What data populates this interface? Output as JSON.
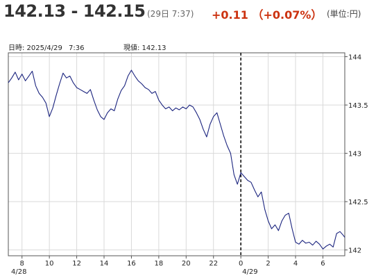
{
  "header": {
    "price_range": "142.13 - 142.15",
    "time": "(29日 7:37)",
    "change": "+0.11 （+0.07%）",
    "unit": "(単位:円)"
  },
  "info": {
    "datetime_label": "日時: 2025/4/29",
    "datetime_time": "7:36",
    "current_label": "現値: 142.13"
  },
  "chart_data": {
    "type": "line",
    "title": "",
    "xlabel": "",
    "ylabel": "",
    "y_ticks": [
      "144",
      "143.5",
      "143",
      "142.5",
      "142"
    ],
    "ylim": [
      141.94,
      144.04
    ],
    "x_ticks": [
      "8",
      "10",
      "12",
      "14",
      "16",
      "18",
      "20",
      "22",
      "0",
      "2",
      "4",
      "6"
    ],
    "x_sublabels": [
      "4/28",
      "4/29"
    ],
    "xlim": [
      "2025-04-28 07:00",
      "2025-04-29 07:36"
    ],
    "day_separator": "2025-04-29 00:00",
    "grid": true,
    "series": [
      {
        "color": "#1a237e",
        "points": [
          [
            "2025-04-28 07:00",
            143.73
          ],
          [
            "2025-04-28 07:15",
            143.78
          ],
          [
            "2025-04-28 07:30",
            143.84
          ],
          [
            "2025-04-28 07:45",
            143.76
          ],
          [
            "2025-04-28 08:00",
            143.82
          ],
          [
            "2025-04-28 08:15",
            143.75
          ],
          [
            "2025-04-28 08:30",
            143.8
          ],
          [
            "2025-04-28 08:45",
            143.85
          ],
          [
            "2025-04-28 09:00",
            143.7
          ],
          [
            "2025-04-28 09:15",
            143.62
          ],
          [
            "2025-04-28 09:30",
            143.58
          ],
          [
            "2025-04-28 09:45",
            143.52
          ],
          [
            "2025-04-28 10:00",
            143.38
          ],
          [
            "2025-04-28 10:15",
            143.47
          ],
          [
            "2025-04-28 10:30",
            143.6
          ],
          [
            "2025-04-28 10:45",
            143.72
          ],
          [
            "2025-04-28 11:00",
            143.83
          ],
          [
            "2025-04-28 11:15",
            143.78
          ],
          [
            "2025-04-28 11:30",
            143.8
          ],
          [
            "2025-04-28 11:45",
            143.73
          ],
          [
            "2025-04-28 12:00",
            143.68
          ],
          [
            "2025-04-28 12:15",
            143.66
          ],
          [
            "2025-04-28 12:30",
            143.64
          ],
          [
            "2025-04-28 12:45",
            143.62
          ],
          [
            "2025-04-28 13:00",
            143.66
          ],
          [
            "2025-04-28 13:15",
            143.55
          ],
          [
            "2025-04-28 13:30",
            143.45
          ],
          [
            "2025-04-28 13:45",
            143.38
          ],
          [
            "2025-04-28 14:00",
            143.35
          ],
          [
            "2025-04-28 14:15",
            143.42
          ],
          [
            "2025-04-28 14:30",
            143.46
          ],
          [
            "2025-04-28 14:45",
            143.44
          ],
          [
            "2025-04-28 15:00",
            143.56
          ],
          [
            "2025-04-28 15:15",
            143.65
          ],
          [
            "2025-04-28 15:30",
            143.7
          ],
          [
            "2025-04-28 15:45",
            143.8
          ],
          [
            "2025-04-28 16:00",
            143.86
          ],
          [
            "2025-04-28 16:15",
            143.8
          ],
          [
            "2025-04-28 16:30",
            143.75
          ],
          [
            "2025-04-28 16:45",
            143.72
          ],
          [
            "2025-04-28 17:00",
            143.68
          ],
          [
            "2025-04-28 17:15",
            143.66
          ],
          [
            "2025-04-28 17:30",
            143.62
          ],
          [
            "2025-04-28 17:45",
            143.64
          ],
          [
            "2025-04-28 18:00",
            143.55
          ],
          [
            "2025-04-28 18:15",
            143.5
          ],
          [
            "2025-04-28 18:30",
            143.46
          ],
          [
            "2025-04-28 18:45",
            143.48
          ],
          [
            "2025-04-28 19:00",
            143.44
          ],
          [
            "2025-04-28 19:15",
            143.47
          ],
          [
            "2025-04-28 19:30",
            143.45
          ],
          [
            "2025-04-28 19:45",
            143.48
          ],
          [
            "2025-04-28 20:00",
            143.46
          ],
          [
            "2025-04-28 20:15",
            143.5
          ],
          [
            "2025-04-28 20:30",
            143.48
          ],
          [
            "2025-04-28 20:45",
            143.42
          ],
          [
            "2025-04-28 21:00",
            143.35
          ],
          [
            "2025-04-28 21:15",
            143.25
          ],
          [
            "2025-04-28 21:30",
            143.17
          ],
          [
            "2025-04-28 21:45",
            143.3
          ],
          [
            "2025-04-28 22:00",
            143.38
          ],
          [
            "2025-04-28 22:15",
            143.42
          ],
          [
            "2025-04-28 22:30",
            143.3
          ],
          [
            "2025-04-28 22:45",
            143.18
          ],
          [
            "2025-04-28 23:00",
            143.08
          ],
          [
            "2025-04-28 23:15",
            143.0
          ],
          [
            "2025-04-28 23:30",
            142.78
          ],
          [
            "2025-04-28 23:45",
            142.68
          ],
          [
            "2025-04-29 00:00",
            142.8
          ],
          [
            "2025-04-29 00:15",
            142.76
          ],
          [
            "2025-04-29 00:30",
            142.72
          ],
          [
            "2025-04-29 00:45",
            142.7
          ],
          [
            "2025-04-29 01:00",
            142.62
          ],
          [
            "2025-04-29 01:15",
            142.55
          ],
          [
            "2025-04-29 01:30",
            142.6
          ],
          [
            "2025-04-29 01:45",
            142.42
          ],
          [
            "2025-04-29 02:00",
            142.3
          ],
          [
            "2025-04-29 02:15",
            142.22
          ],
          [
            "2025-04-29 02:30",
            142.26
          ],
          [
            "2025-04-29 02:45",
            142.2
          ],
          [
            "2025-04-29 03:00",
            142.3
          ],
          [
            "2025-04-29 03:15",
            142.36
          ],
          [
            "2025-04-29 03:30",
            142.38
          ],
          [
            "2025-04-29 03:45",
            142.22
          ],
          [
            "2025-04-29 04:00",
            142.08
          ],
          [
            "2025-04-29 04:15",
            142.06
          ],
          [
            "2025-04-29 04:30",
            142.1
          ],
          [
            "2025-04-29 04:45",
            142.07
          ],
          [
            "2025-04-29 05:00",
            142.08
          ],
          [
            "2025-04-29 05:15",
            142.05
          ],
          [
            "2025-04-29 05:30",
            142.09
          ],
          [
            "2025-04-29 05:45",
            142.06
          ],
          [
            "2025-04-29 06:00",
            142.01
          ],
          [
            "2025-04-29 06:15",
            142.04
          ],
          [
            "2025-04-29 06:30",
            142.06
          ],
          [
            "2025-04-29 06:45",
            142.03
          ],
          [
            "2025-04-29 07:00",
            142.17
          ],
          [
            "2025-04-29 07:15",
            142.19
          ],
          [
            "2025-04-29 07:30",
            142.15
          ],
          [
            "2025-04-29 07:36",
            142.13
          ]
        ]
      }
    ]
  }
}
